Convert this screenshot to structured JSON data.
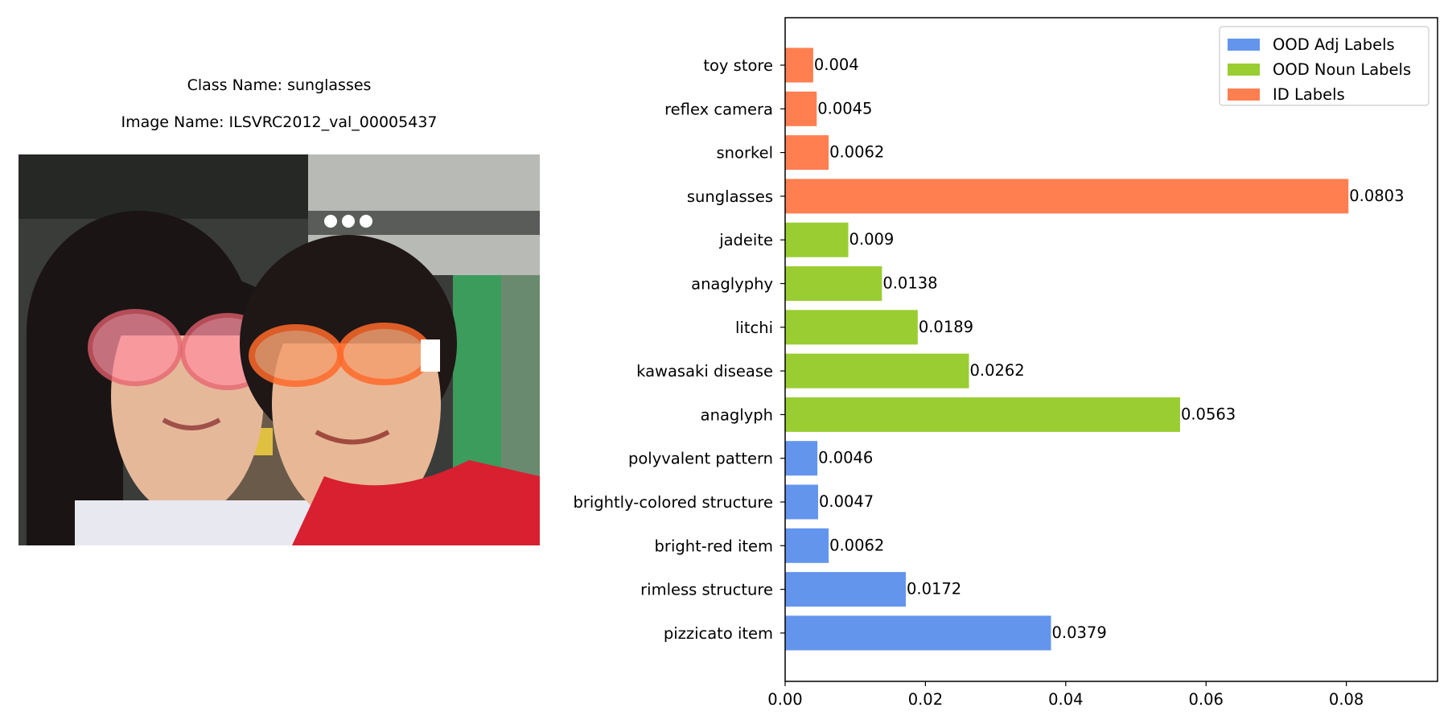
{
  "caption": {
    "class_name": "Class Name: sunglasses",
    "image_name": "Image Name: ILSVRC2012_val_00005437"
  },
  "photo": {
    "description_icon": "photo-of-two-girls-wearing-sunglasses"
  },
  "chart_data": {
    "type": "bar",
    "orientation": "horizontal",
    "categories": [
      "toy store",
      "reflex camera",
      "snorkel",
      "sunglasses",
      "jadeite",
      "anaglyphy",
      "litchi",
      "kawasaki disease",
      "anaglyph",
      "polyvalent pattern",
      "brightly-colored structure",
      "bright-red item",
      "rimless structure",
      "pizzicato item"
    ],
    "values": [
      0.004,
      0.0045,
      0.0062,
      0.0803,
      0.009,
      0.0138,
      0.0189,
      0.0262,
      0.0563,
      0.0046,
      0.0047,
      0.0062,
      0.0172,
      0.0379
    ],
    "value_labels": [
      "0.004",
      "0.0045",
      "0.0062",
      "0.0803",
      "0.009",
      "0.0138",
      "0.0189",
      "0.0262",
      "0.0563",
      "0.0046",
      "0.0047",
      "0.0062",
      "0.0172",
      "0.0379"
    ],
    "groups": [
      "id",
      "id",
      "id",
      "id",
      "noun",
      "noun",
      "noun",
      "noun",
      "noun",
      "adj",
      "adj",
      "adj",
      "adj",
      "adj"
    ],
    "series": [
      {
        "key": "adj",
        "name": "OOD Adj Labels",
        "color": "#6495ED"
      },
      {
        "key": "noun",
        "name": "OOD Noun Labels",
        "color": "#9ACD32"
      },
      {
        "key": "id",
        "name": "ID Labels",
        "color": "#FF7F50"
      }
    ],
    "xlim": [
      0,
      0.093
    ],
    "xticks": [
      0,
      0.02,
      0.04,
      0.06,
      0.08
    ],
    "xtick_labels": [
      "0.00",
      "0.02",
      "0.04",
      "0.06",
      "0.08"
    ],
    "legend": "top-right",
    "grid": false,
    "title": "",
    "xlabel": "",
    "ylabel": ""
  }
}
